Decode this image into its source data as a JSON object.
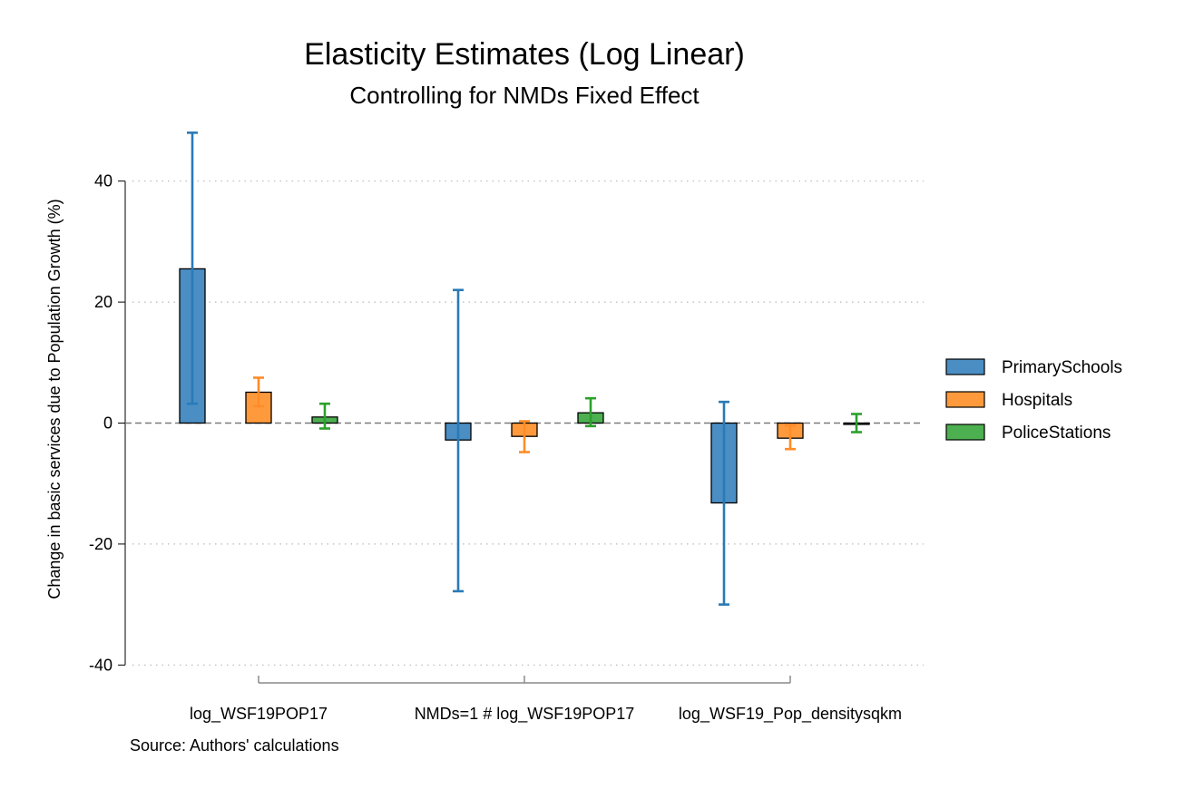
{
  "chart_data": {
    "type": "bar",
    "title": "Elasticity Estimates (Log Linear)",
    "subtitle": "Controlling for NMDs Fixed Effect",
    "ylabel": "Change in basic services due to Population Growth (%)",
    "xlabel": "",
    "note": "Source: Authors' calculations",
    "categories": [
      "log_WSF19POP17",
      "NMDs=1 # log_WSF19POP17",
      "log_WSF19_Pop_densitysqkm"
    ],
    "ylim": [
      -40,
      48
    ],
    "yticks": [
      40,
      20,
      0,
      -20,
      -40
    ],
    "grid": true,
    "legend_position": "right",
    "series": [
      {
        "name": "PrimarySchools",
        "color": "#4a8ec4",
        "error_color": "#2a7ab6",
        "values": [
          25.5,
          -2.8,
          -13.2
        ],
        "ci_low": [
          3.2,
          -27.8,
          -30.0
        ],
        "ci_high": [
          48.0,
          22.0,
          3.5
        ]
      },
      {
        "name": "Hospitals",
        "color": "#ff9a3c",
        "error_color": "#ff8c28",
        "values": [
          5.1,
          -2.2,
          -2.5
        ],
        "ci_low": [
          2.8,
          -4.8,
          -4.3
        ],
        "ci_high": [
          7.5,
          0.3,
          -0.4
        ]
      },
      {
        "name": "PoliceStations",
        "color": "#4caf50",
        "error_color": "#2ca02c",
        "values": [
          1.0,
          1.7,
          0.0
        ],
        "ci_low": [
          -0.9,
          -0.5,
          -1.5
        ],
        "ci_high": [
          3.2,
          4.1,
          1.5
        ]
      }
    ]
  }
}
